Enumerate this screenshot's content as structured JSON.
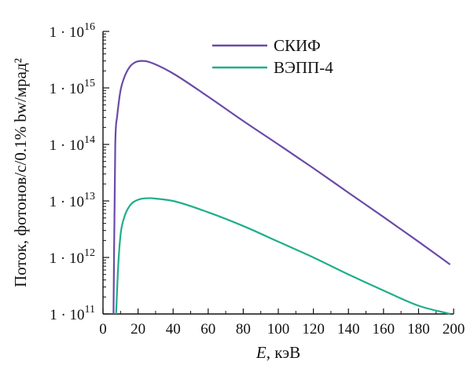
{
  "chart_data": {
    "type": "line",
    "title": "",
    "xlabel": {
      "italic": "E",
      "rest": ", кэВ"
    },
    "ylabel": "Поток, фотонов/с/0.1% bw/мрад²",
    "xlim": [
      0,
      200
    ],
    "ylim": [
      100000000000.0,
      1e+16
    ],
    "yscale": "log",
    "grid": false,
    "legend_position": "top-right",
    "x_ticks": [
      "0",
      "20",
      "40",
      "60",
      "80",
      "100",
      "120",
      "140",
      "160",
      "180",
      "200"
    ],
    "y_ticks": [
      {
        "value": 100000000000.0,
        "mantissa": "1 · 10",
        "exp": "11"
      },
      {
        "value": 1000000000000.0,
        "mantissa": "1 · 10",
        "exp": "12"
      },
      {
        "value": 10000000000000.0,
        "mantissa": "1 · 10",
        "exp": "13"
      },
      {
        "value": 100000000000000.0,
        "mantissa": "1 · 10",
        "exp": "14"
      },
      {
        "value": 1000000000000000.0,
        "mantissa": "1 · 10",
        "exp": "15"
      },
      {
        "value": 1e+16,
        "mantissa": "1 · 10",
        "exp": "16"
      }
    ],
    "series": [
      {
        "name": "СКИФ",
        "color": "#6a4aa8",
        "x": [
          6,
          7,
          8,
          10,
          12,
          15,
          18,
          22,
          25,
          30,
          40,
          60,
          80,
          100,
          120,
          140,
          160,
          180,
          198
        ],
        "y": [
          100000000000.0,
          100000000000000.0,
          300000000000000.0,
          900000000000000.0,
          1500000000000000.0,
          2300000000000000.0,
          2800000000000000.0,
          3000000000000000.0,
          2950000000000000.0,
          2600000000000000.0,
          1800000000000000.0,
          700000000000000.0,
          260000000000000.0,
          100000000000000.0,
          38000000000000.0,
          14000000000000.0,
          5200000000000.0,
          1900000000000.0,
          750000000000.0
        ]
      },
      {
        "name": "ВЭПП-4",
        "color": "#1fae8a",
        "x": [
          7.5,
          8.5,
          10,
          12,
          15,
          20,
          27,
          30,
          40,
          60,
          80,
          100,
          120,
          140,
          160,
          180,
          198
        ],
        "y": [
          100000000000.0,
          560000000000.0,
          2500000000000.0,
          5000000000000.0,
          8000000000000.0,
          10500000000000.0,
          11200000000000.0,
          11000000000000.0,
          10000000000000.0,
          6300000000000.0,
          3600000000000.0,
          1900000000000.0,
          1000000000000.0,
          500000000000.0,
          260000000000.0,
          140000000000.0,
          100000000000.0
        ]
      }
    ]
  }
}
